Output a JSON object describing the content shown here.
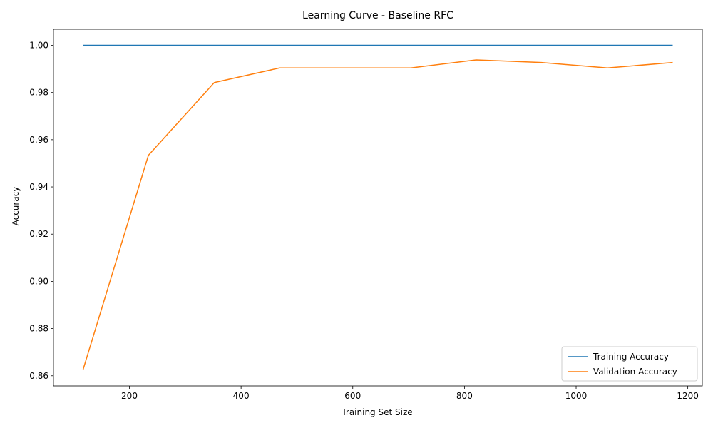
{
  "chart_data": {
    "type": "line",
    "title": "Learning Curve - Baseline RFC",
    "xlabel": "Training Set Size",
    "ylabel": "Accuracy",
    "x": [
      117,
      234,
      352,
      469,
      586,
      704,
      821,
      938,
      1056,
      1173
    ],
    "series": [
      {
        "name": "Training Accuracy",
        "color": "#1f77b4",
        "values": [
          1.0,
          1.0,
          1.0,
          1.0,
          1.0,
          1.0,
          1.0,
          1.0,
          1.0,
          1.0
        ]
      },
      {
        "name": "Validation Accuracy",
        "color": "#ff7f0e",
        "values": [
          0.8626,
          0.9534,
          0.9842,
          0.9904,
          0.9904,
          0.9904,
          0.9938,
          0.9927,
          0.9904,
          0.9927
        ]
      }
    ],
    "xlim": [
      64,
      1226
    ],
    "ylim": [
      0.8557,
      1.0068
    ],
    "xticks": [
      200,
      400,
      600,
      800,
      1000,
      1200
    ],
    "yticks": [
      0.86,
      0.88,
      0.9,
      0.92,
      0.94,
      0.96,
      0.98,
      1.0
    ],
    "ytick_labels": [
      "0.86",
      "0.88",
      "0.90",
      "0.92",
      "0.94",
      "0.96",
      "0.98",
      "1.00"
    ],
    "grid": false,
    "legend_position": "bottom-right"
  }
}
